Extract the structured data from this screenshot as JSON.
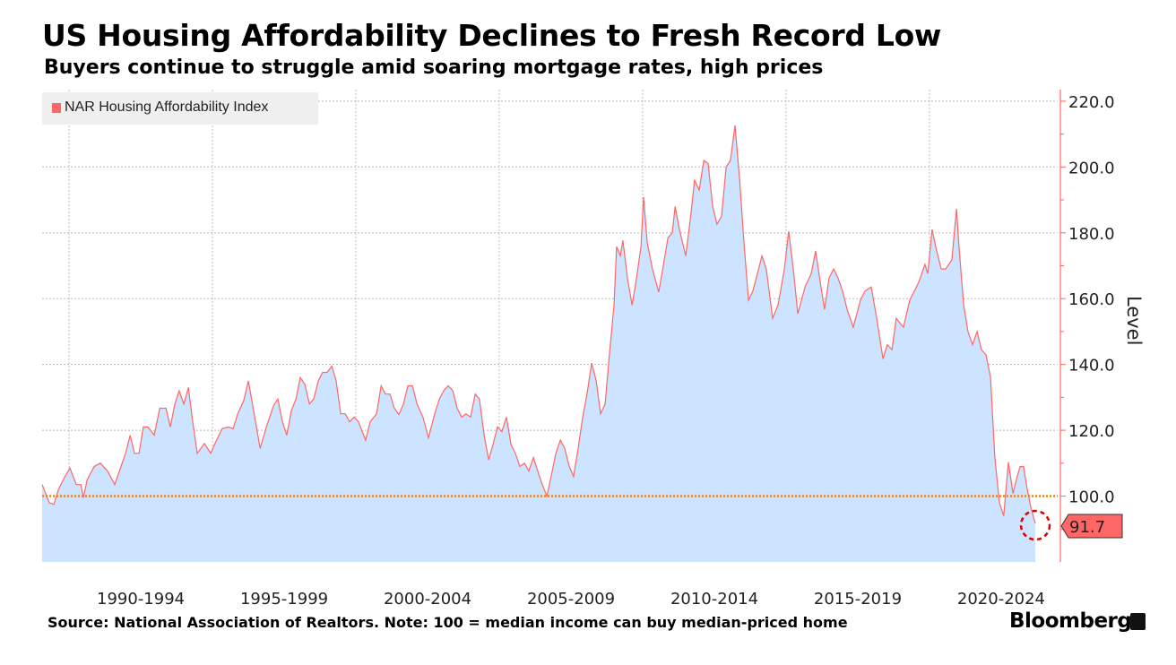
{
  "header": {
    "title": "US Housing Affordability Declines to Fresh Record Low",
    "subtitle": "Buyers continue to struggle amid soaring mortgage rates, high prices"
  },
  "footer": {
    "source": "Source: National Association of Realtors. Note: 100 = median income can buy median-priced home",
    "brand": "Bloomberg"
  },
  "colors": {
    "line": "#ff6666",
    "fill": "#cce4ff",
    "reference": "#ff7f00",
    "axis": "#ff6666",
    "highlight": "#dd0000"
  },
  "chart_data": {
    "type": "area",
    "title": "US Housing Affordability Declines to Fresh Record Low",
    "ylabel": "Level",
    "xlabel": "",
    "ylim": [
      80,
      223.5
    ],
    "xlim": [
      1989.06,
      2024.47
    ],
    "grid": true,
    "legend": {
      "placement": "top-left",
      "entries": [
        "NAR Housing Affordability Index"
      ]
    },
    "yticks": [
      "220.0",
      "200.0",
      "180.0",
      "160.0",
      "140.0",
      "120.0",
      "100.0"
    ],
    "ytick_values": [
      220,
      200,
      180,
      160,
      140,
      120,
      100
    ],
    "xtick_labels": [
      "1990-1994",
      "1995-1999",
      "2000-2004",
      "2005-2009",
      "2010-2014",
      "2015-2019",
      "2020-2024"
    ],
    "xtick_starts": [
      1990,
      1995,
      2000,
      2005,
      2010,
      2015,
      2020
    ],
    "reference_line": 100,
    "last_value_label": "91.7",
    "series": [
      {
        "name": "NAR Housing Affordability Index",
        "points": [
          [
            1989.06,
            103.5
          ],
          [
            1989.31,
            98
          ],
          [
            1989.47,
            97.5
          ],
          [
            1989.63,
            102
          ],
          [
            1989.84,
            105.7
          ],
          [
            1990.03,
            108.5
          ],
          [
            1990.25,
            103.5
          ],
          [
            1990.41,
            103.5
          ],
          [
            1990.5,
            99.5
          ],
          [
            1990.63,
            105
          ],
          [
            1990.88,
            109
          ],
          [
            1991.09,
            110
          ],
          [
            1991.34,
            107.6
          ],
          [
            1991.59,
            103.5
          ],
          [
            1991.81,
            109
          ],
          [
            1991.97,
            113
          ],
          [
            1992.13,
            118.5
          ],
          [
            1992.28,
            113
          ],
          [
            1992.44,
            113
          ],
          [
            1992.59,
            121
          ],
          [
            1992.75,
            121
          ],
          [
            1992.97,
            118.5
          ],
          [
            1993.16,
            126.7
          ],
          [
            1993.38,
            126.7
          ],
          [
            1993.53,
            121
          ],
          [
            1993.69,
            128
          ],
          [
            1993.84,
            132
          ],
          [
            1994.0,
            128
          ],
          [
            1994.16,
            133
          ],
          [
            1994.31,
            122.6
          ],
          [
            1994.47,
            113
          ],
          [
            1994.72,
            116
          ],
          [
            1994.94,
            113
          ],
          [
            1995.09,
            116
          ],
          [
            1995.34,
            120.5
          ],
          [
            1995.56,
            121
          ],
          [
            1995.72,
            120.5
          ],
          [
            1995.88,
            125
          ],
          [
            1996.09,
            129
          ],
          [
            1996.25,
            135
          ],
          [
            1996.5,
            122.6
          ],
          [
            1996.66,
            114.5
          ],
          [
            1996.88,
            121
          ],
          [
            1997.13,
            127.5
          ],
          [
            1997.28,
            129.5
          ],
          [
            1997.44,
            122.6
          ],
          [
            1997.59,
            118.5
          ],
          [
            1997.75,
            126
          ],
          [
            1997.91,
            129.5
          ],
          [
            1998.06,
            136
          ],
          [
            1998.22,
            134
          ],
          [
            1998.38,
            128
          ],
          [
            1998.53,
            129.5
          ],
          [
            1998.69,
            135
          ],
          [
            1998.84,
            137.6
          ],
          [
            1999.0,
            137.6
          ],
          [
            1999.16,
            139.5
          ],
          [
            1999.31,
            135
          ],
          [
            1999.47,
            125
          ],
          [
            1999.63,
            125
          ],
          [
            1999.78,
            122.6
          ],
          [
            1999.94,
            124
          ],
          [
            2000.09,
            122.6
          ],
          [
            2000.34,
            117
          ],
          [
            2000.5,
            122.6
          ],
          [
            2000.72,
            125
          ],
          [
            2000.88,
            133.5
          ],
          [
            2001.03,
            131
          ],
          [
            2001.19,
            131
          ],
          [
            2001.34,
            126.7
          ],
          [
            2001.5,
            124.8
          ],
          [
            2001.66,
            128
          ],
          [
            2001.81,
            133.5
          ],
          [
            2001.97,
            133.5
          ],
          [
            2002.13,
            128
          ],
          [
            2002.34,
            124
          ],
          [
            2002.53,
            117.7
          ],
          [
            2002.75,
            125
          ],
          [
            2002.91,
            129.5
          ],
          [
            2003.06,
            132
          ],
          [
            2003.22,
            133.5
          ],
          [
            2003.38,
            132
          ],
          [
            2003.53,
            126.7
          ],
          [
            2003.69,
            124
          ],
          [
            2003.84,
            125
          ],
          [
            2004.0,
            124
          ],
          [
            2004.16,
            131
          ],
          [
            2004.31,
            129.5
          ],
          [
            2004.47,
            118.5
          ],
          [
            2004.63,
            111
          ],
          [
            2004.78,
            115.7
          ],
          [
            2004.94,
            121
          ],
          [
            2005.09,
            119.6
          ],
          [
            2005.25,
            124
          ],
          [
            2005.41,
            115.7
          ],
          [
            2005.56,
            113
          ],
          [
            2005.72,
            109
          ],
          [
            2005.88,
            110
          ],
          [
            2006.03,
            107.6
          ],
          [
            2006.19,
            111.7
          ],
          [
            2006.34,
            107.6
          ],
          [
            2006.5,
            103.5
          ],
          [
            2006.66,
            100
          ],
          [
            2006.81,
            106
          ],
          [
            2006.97,
            113
          ],
          [
            2007.13,
            117
          ],
          [
            2007.28,
            114.5
          ],
          [
            2007.44,
            109
          ],
          [
            2007.59,
            106
          ],
          [
            2007.75,
            114.5
          ],
          [
            2007.91,
            124
          ],
          [
            2008.06,
            131
          ],
          [
            2008.22,
            140.4
          ],
          [
            2008.38,
            135
          ],
          [
            2008.53,
            125
          ],
          [
            2008.69,
            128
          ],
          [
            2008.84,
            143
          ],
          [
            2009.0,
            158
          ],
          [
            2009.09,
            175.8
          ],
          [
            2009.22,
            173
          ],
          [
            2009.31,
            177.7
          ],
          [
            2009.47,
            166
          ],
          [
            2009.63,
            158
          ],
          [
            2009.78,
            166
          ],
          [
            2009.94,
            175.8
          ],
          [
            2010.03,
            190.8
          ],
          [
            2010.16,
            177
          ],
          [
            2010.34,
            169
          ],
          [
            2010.56,
            162
          ],
          [
            2010.72,
            170
          ],
          [
            2010.88,
            178.5
          ],
          [
            2011.03,
            180
          ],
          [
            2011.13,
            188
          ],
          [
            2011.28,
            181
          ],
          [
            2011.5,
            173
          ],
          [
            2011.66,
            184
          ],
          [
            2011.81,
            196
          ],
          [
            2011.97,
            193
          ],
          [
            2012.13,
            202
          ],
          [
            2012.28,
            201
          ],
          [
            2012.44,
            188
          ],
          [
            2012.59,
            182.6
          ],
          [
            2012.75,
            185
          ],
          [
            2012.91,
            200
          ],
          [
            2013.06,
            202
          ],
          [
            2013.22,
            212.6
          ],
          [
            2013.38,
            196
          ],
          [
            2013.53,
            177
          ],
          [
            2013.69,
            159.5
          ],
          [
            2013.84,
            162.3
          ],
          [
            2014.0,
            167.6
          ],
          [
            2014.16,
            173
          ],
          [
            2014.31,
            169
          ],
          [
            2014.53,
            154
          ],
          [
            2014.72,
            158
          ],
          [
            2014.94,
            169
          ],
          [
            2015.09,
            180.5
          ],
          [
            2015.25,
            169
          ],
          [
            2015.41,
            155.4
          ],
          [
            2015.66,
            163.5
          ],
          [
            2015.88,
            167.6
          ],
          [
            2016.03,
            174.5
          ],
          [
            2016.19,
            165
          ],
          [
            2016.34,
            156.7
          ],
          [
            2016.5,
            166.3
          ],
          [
            2016.66,
            169
          ],
          [
            2016.81,
            166.3
          ],
          [
            2016.97,
            162.3
          ],
          [
            2017.13,
            156.7
          ],
          [
            2017.34,
            151.3
          ],
          [
            2017.59,
            159.5
          ],
          [
            2017.75,
            162.3
          ],
          [
            2017.97,
            163.5
          ],
          [
            2018.16,
            154
          ],
          [
            2018.38,
            141.7
          ],
          [
            2018.53,
            146
          ],
          [
            2018.69,
            144.5
          ],
          [
            2018.84,
            154
          ],
          [
            2019.09,
            151.3
          ],
          [
            2019.31,
            159.5
          ],
          [
            2019.63,
            165
          ],
          [
            2019.84,
            170.4
          ],
          [
            2019.94,
            167.6
          ],
          [
            2020.09,
            181
          ],
          [
            2020.25,
            174.5
          ],
          [
            2020.41,
            169
          ],
          [
            2020.56,
            169
          ],
          [
            2020.78,
            171.7
          ],
          [
            2020.94,
            187.3
          ],
          [
            2021.03,
            175.8
          ],
          [
            2021.19,
            158
          ],
          [
            2021.34,
            150
          ],
          [
            2021.5,
            146
          ],
          [
            2021.66,
            150
          ],
          [
            2021.81,
            144.5
          ],
          [
            2021.97,
            143
          ],
          [
            2022.13,
            136
          ],
          [
            2022.28,
            111.7
          ],
          [
            2022.44,
            98
          ],
          [
            2022.59,
            94
          ],
          [
            2022.75,
            110.4
          ],
          [
            2022.91,
            100.8
          ],
          [
            2023.06,
            106
          ],
          [
            2023.16,
            109
          ],
          [
            2023.28,
            109
          ],
          [
            2023.38,
            103.5
          ],
          [
            2023.53,
            96.7
          ],
          [
            2023.69,
            91.7
          ]
        ]
      }
    ]
  }
}
